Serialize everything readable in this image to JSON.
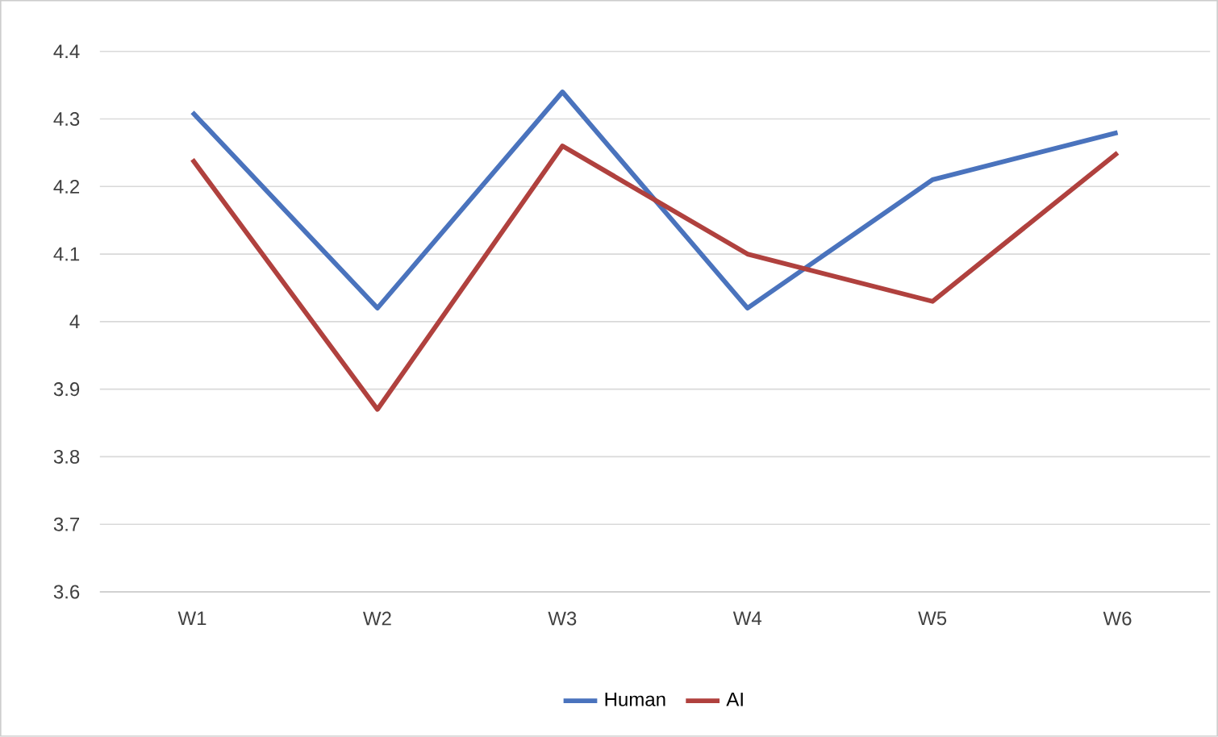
{
  "chart_data": {
    "type": "line",
    "categories": [
      "W1",
      "W2",
      "W3",
      "W4",
      "W5",
      "W6"
    ],
    "series": [
      {
        "name": "Human",
        "color": "#4a73bd",
        "values": [
          4.31,
          4.02,
          4.34,
          4.02,
          4.21,
          4.28
        ]
      },
      {
        "name": "AI",
        "color": "#b0413e",
        "values": [
          4.24,
          3.87,
          4.26,
          4.1,
          4.03,
          4.25
        ]
      }
    ],
    "ylim": [
      3.6,
      4.4
    ],
    "yticks": [
      3.6,
      3.7,
      3.8,
      3.9,
      4,
      4.1,
      4.2,
      4.3,
      4.4
    ],
    "grid": "y",
    "legend": "bottom",
    "marker": "none",
    "line_style": "solid"
  }
}
